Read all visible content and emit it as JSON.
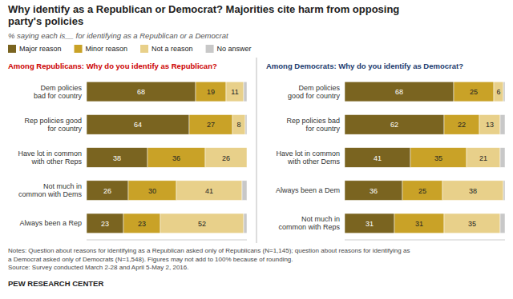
{
  "title": "Why identify as a Republican or Democrat?  Majorities cite harm from opposing\nparty's policies",
  "subtitle": "% saying each is__ for identifying as a Republican or a Democrat",
  "annotations": [
    "Notes: Question about reasons for identifying as a Republican asked only of Republicans (N=1,145); question about reasons for identifying as",
    "a Democrat asked only of Democrats (N=1,548). Figures may not add to 100% because of rounding.",
    "Source: Survey conducted March 2-28 and April 5-May 2, 2016.",
    "PEW RESEARCH CENTER"
  ],
  "chart_data": [
    {
      "type": "bar",
      "orientation": "horizontal",
      "stacked": true,
      "data_labels": true,
      "tick_labels": "y",
      "legend": "top",
      "grid": false,
      "title": "Among Republicans: Why do you identify as Republican?",
      "color": "#cc0000",
      "categories": [
        "Dem policies\nbad for country",
        "Rep policies good\nfor country",
        "Have lot in common\nwith other Reps",
        "Not much in\ncommon with Dems",
        "Always been a Rep"
      ],
      "xlim": [
        0,
        100
      ],
      "series": [
        {
          "name": "Major reason",
          "color": "#7a6420",
          "values": [
            68,
            64,
            38,
            26,
            23
          ]
        },
        {
          "name": "Minor reason",
          "color": "#c9a227",
          "values": [
            19,
            27,
            36,
            30,
            23
          ]
        },
        {
          "name": "Not a reason",
          "color": "#e8d08a",
          "values": [
            11,
            8,
            26,
            41,
            52
          ]
        },
        {
          "name": "No answer",
          "color": "#c8c8c8",
          "values": [
            2,
            1,
            0,
            3,
            2
          ]
        }
      ]
    },
    {
      "type": "bar",
      "orientation": "horizontal",
      "stacked": true,
      "data_labels": true,
      "tick_labels": "y",
      "grid": false,
      "title": "Among Democrats: Why do you identify as Democrat?",
      "color": "#1a3a6e",
      "categories": [
        "Dem policies\ngood for country",
        "Rep policies bad\nfor country",
        "Have lot in common\nwith other Dems",
        "Always been a Dem",
        "Not much in\ncommon with Reps"
      ],
      "xlim": [
        0,
        100
      ],
      "series": [
        {
          "color": "#7a6420",
          "values": [
            68,
            62,
            41,
            36,
            31
          ]
        },
        {
          "color": "#c9a227",
          "values": [
            25,
            22,
            35,
            25,
            31
          ]
        },
        {
          "color": "#e8d08a",
          "values": [
            6,
            13,
            21,
            38,
            35
          ]
        },
        {
          "color": "#c8c8c8",
          "values": [
            1,
            3,
            3,
            1,
            3
          ]
        }
      ]
    }
  ]
}
